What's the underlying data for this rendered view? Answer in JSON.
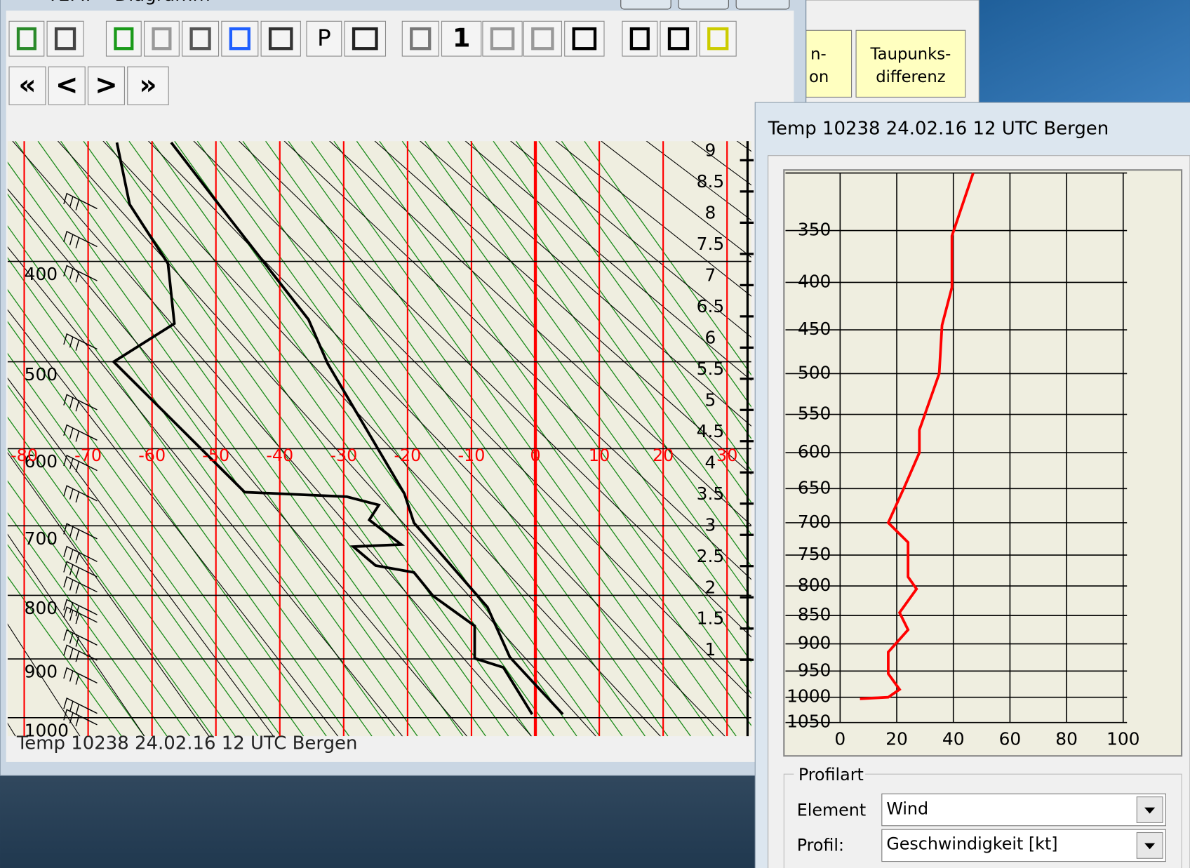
{
  "window": {
    "title": "TEMP - Diagramm",
    "toolbar_labels": [
      "P",
      "1"
    ],
    "nav_buttons": [
      "«",
      "<",
      ">",
      "»"
    ],
    "footer": "Temp 10238 24.02.16 12 UTC Bergen"
  },
  "background_buttons": [
    [
      "n-",
      "on"
    ],
    [
      "Taupunks-",
      "differenz"
    ]
  ],
  "skewt": {
    "type": "line",
    "xlim": [
      -82.6,
      33.8
    ],
    "xticks": [
      -80,
      -70,
      -60,
      -50,
      -40,
      -30,
      -20,
      -10,
      0,
      10,
      20,
      30
    ],
    "ylim": [
      300,
      1033
    ],
    "yticks": [
      400,
      500,
      600,
      700,
      800,
      900,
      1000
    ],
    "y_scale_exponent": 0.286,
    "height_lim": [
      -0.37,
      9.16
    ],
    "height_ticks": [
      9,
      8.5,
      8,
      7.5,
      7,
      6.5,
      6,
      5.5,
      5,
      4.5,
      4,
      3.5,
      3,
      2.5,
      2,
      1.5,
      1
    ],
    "isotherm_color": "#ff0000",
    "isobar_color": "#000000",
    "series": [
      {
        "color": "#000000",
        "pressure": [
          301,
          347,
          456,
          502,
          657,
          696,
          818,
          897,
          994
        ],
        "values": [
          -57,
          -50,
          -35.5,
          -32.5,
          -20.5,
          -19,
          -7.5,
          -4,
          4.3
        ]
      },
      {
        "color": "#000000",
        "pressure": [
          301,
          350,
          402,
          460,
          500,
          655,
          661,
          672,
          692,
          726,
          729,
          756,
          766,
          801,
          847,
          899,
          914,
          994
        ],
        "values": [
          -65.5,
          -63.5,
          -57.5,
          -56.5,
          -66,
          -45.5,
          -29.5,
          -24.5,
          -26,
          -21,
          -28.5,
          -25,
          -19,
          -16,
          -9.5,
          -9.5,
          -5,
          -0.5
        ]
      }
    ]
  },
  "profile": {
    "title": "Temp 10238 24.02.16 12 UTC Bergen",
    "type": "line",
    "xlim": [
      0,
      100
    ],
    "xticks": [
      0,
      20,
      40,
      60,
      80,
      100
    ],
    "ylim": [
      300,
      1050
    ],
    "yticks": [
      350,
      400,
      450,
      500,
      550,
      600,
      650,
      700,
      750,
      800,
      850,
      900,
      950,
      1000,
      1050
    ],
    "y_scale_exponent": 0.286,
    "grid": true,
    "color": "#ff0000",
    "pressure": [
      300,
      355,
      405,
      445,
      500,
      570,
      600,
      645,
      700,
      730,
      785,
      805,
      845,
      875,
      915,
      955,
      985,
      1000,
      1003
    ],
    "values": [
      47,
      39.5,
      39.5,
      36,
      35,
      28,
      28,
      23,
      17,
      24,
      24,
      27,
      21,
      24,
      17,
      17,
      21,
      17,
      7
    ],
    "group_title": "Profilart",
    "fields": [
      {
        "label": "Element",
        "value": "Wind"
      },
      {
        "label": "Profil:",
        "value": "Geschwindigkeit [kt]"
      }
    ]
  }
}
